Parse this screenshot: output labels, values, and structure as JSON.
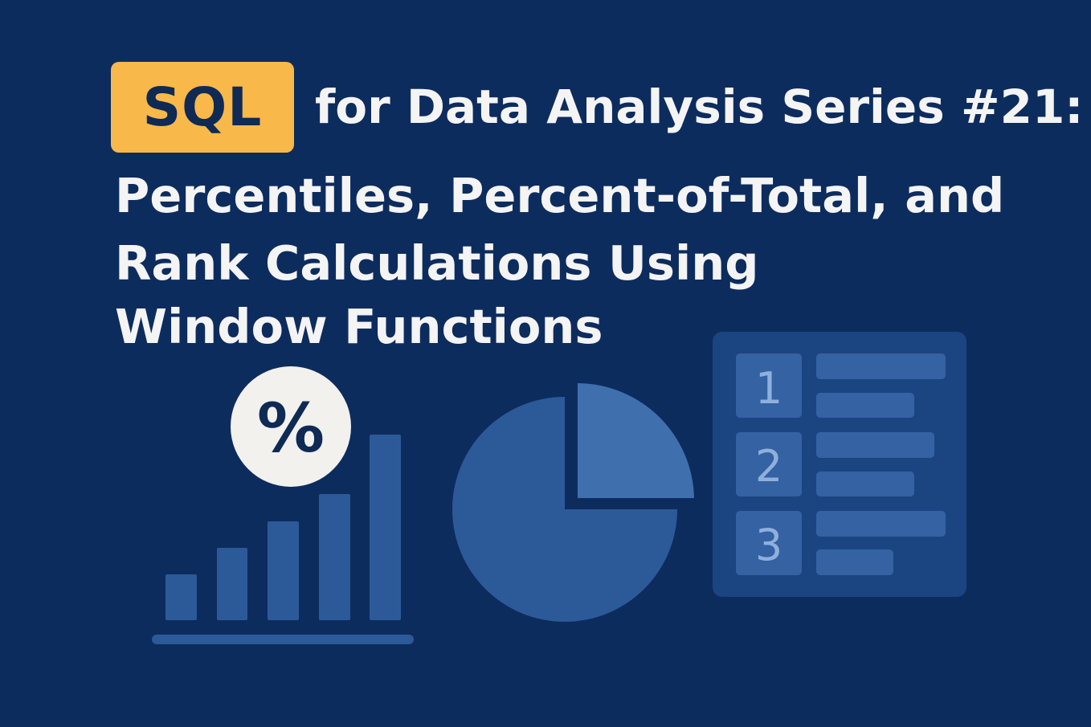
{
  "badge": {
    "label": "SQL",
    "color": "#f8b84a"
  },
  "title": {
    "line1": "for Data Analysis Series #21:",
    "line2": "Percentiles, Percent-of-Total, and",
    "line3": "Rank Calculations Using",
    "line4": "Window Functions"
  },
  "illustration": {
    "percent_symbol": "%",
    "rank_numbers": [
      "1",
      "2",
      "3"
    ],
    "icons": [
      "bar-chart-icon",
      "percent-icon",
      "pie-chart-icon",
      "ranked-list-icon"
    ]
  },
  "colors": {
    "background": "#0d2c5e",
    "text": "#f4f4f4",
    "accent_blue": "#2c5a99",
    "light_blue": "#3f6fad"
  }
}
